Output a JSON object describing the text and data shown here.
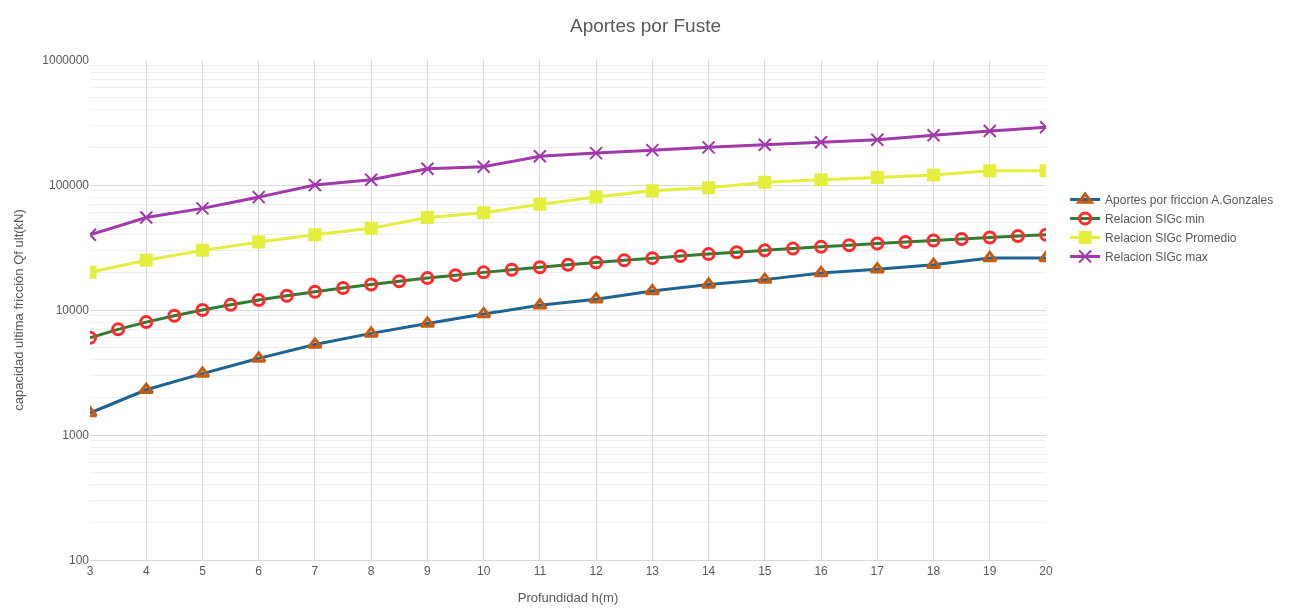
{
  "chart_data": {
    "type": "line",
    "title": "Aportes por Fuste",
    "xlabel": "Profundidad h(m)",
    "ylabel": "capacidad ultima fricción Qf ult(kN)",
    "x": [
      3,
      4,
      5,
      6,
      7,
      8,
      9,
      10,
      11,
      12,
      13,
      14,
      15,
      16,
      17,
      18,
      19,
      20
    ],
    "series": [
      {
        "name": "Aportes por friccion A.Gonzales",
        "color": "#1f6391",
        "marker": "triangle",
        "values": [
          1500,
          2300,
          3100,
          4100,
          5300,
          6500,
          7800,
          9300,
          10900,
          12200,
          14200,
          16000,
          17500,
          19800,
          21200,
          23000,
          26100,
          26100
        ]
      },
      {
        "name": "Relacion SIGc min",
        "color": "#2e7d32",
        "marker": "circle",
        "x": [
          3,
          3.5,
          4,
          4.5,
          5,
          5.5,
          6,
          6.5,
          7,
          7.5,
          8,
          8.5,
          9,
          9.5,
          10,
          10.5,
          11,
          11.5,
          12,
          12.5,
          13,
          13.5,
          14,
          14.5,
          15,
          15.5,
          16,
          16.5,
          17,
          17.5,
          18,
          18.5,
          19,
          19.5,
          20
        ],
        "values": [
          6000,
          7000,
          8000,
          9000,
          10000,
          11000,
          12000,
          13000,
          14000,
          15000,
          16000,
          17000,
          18000,
          19000,
          20000,
          21000,
          22000,
          23000,
          24000,
          25000,
          26000,
          27000,
          28000,
          29000,
          30000,
          31000,
          32000,
          33000,
          34000,
          35000,
          36000,
          37000,
          38000,
          39000,
          40000
        ]
      },
      {
        "name": "Relacion SIGc Promedio",
        "color": "#e5ee3c",
        "marker": "square",
        "values": [
          20000,
          25000,
          30000,
          35000,
          40000,
          45000,
          55000,
          60000,
          70000,
          80000,
          90000,
          95000,
          105000,
          110000,
          115000,
          120000,
          130000,
          130000
        ]
      },
      {
        "name": "Relacion SIGc max",
        "color": "#a03aa8",
        "marker": "cross",
        "values": [
          40000,
          55000,
          65000,
          80000,
          100000,
          110000,
          135000,
          140000,
          170000,
          180000,
          190000,
          200000,
          210000,
          220000,
          230000,
          250000,
          270000,
          290000
        ]
      }
    ],
    "log": "y",
    "xlim": [
      3,
      20
    ],
    "xticks": [
      3,
      4,
      5,
      6,
      7,
      8,
      9,
      10,
      11,
      12,
      13,
      14,
      15,
      16,
      17,
      18,
      19,
      20
    ],
    "ylim": [
      100,
      1000000
    ],
    "yticks": [
      100,
      1000,
      10000,
      100000,
      1000000
    ],
    "grid": true,
    "legend": "right"
  }
}
